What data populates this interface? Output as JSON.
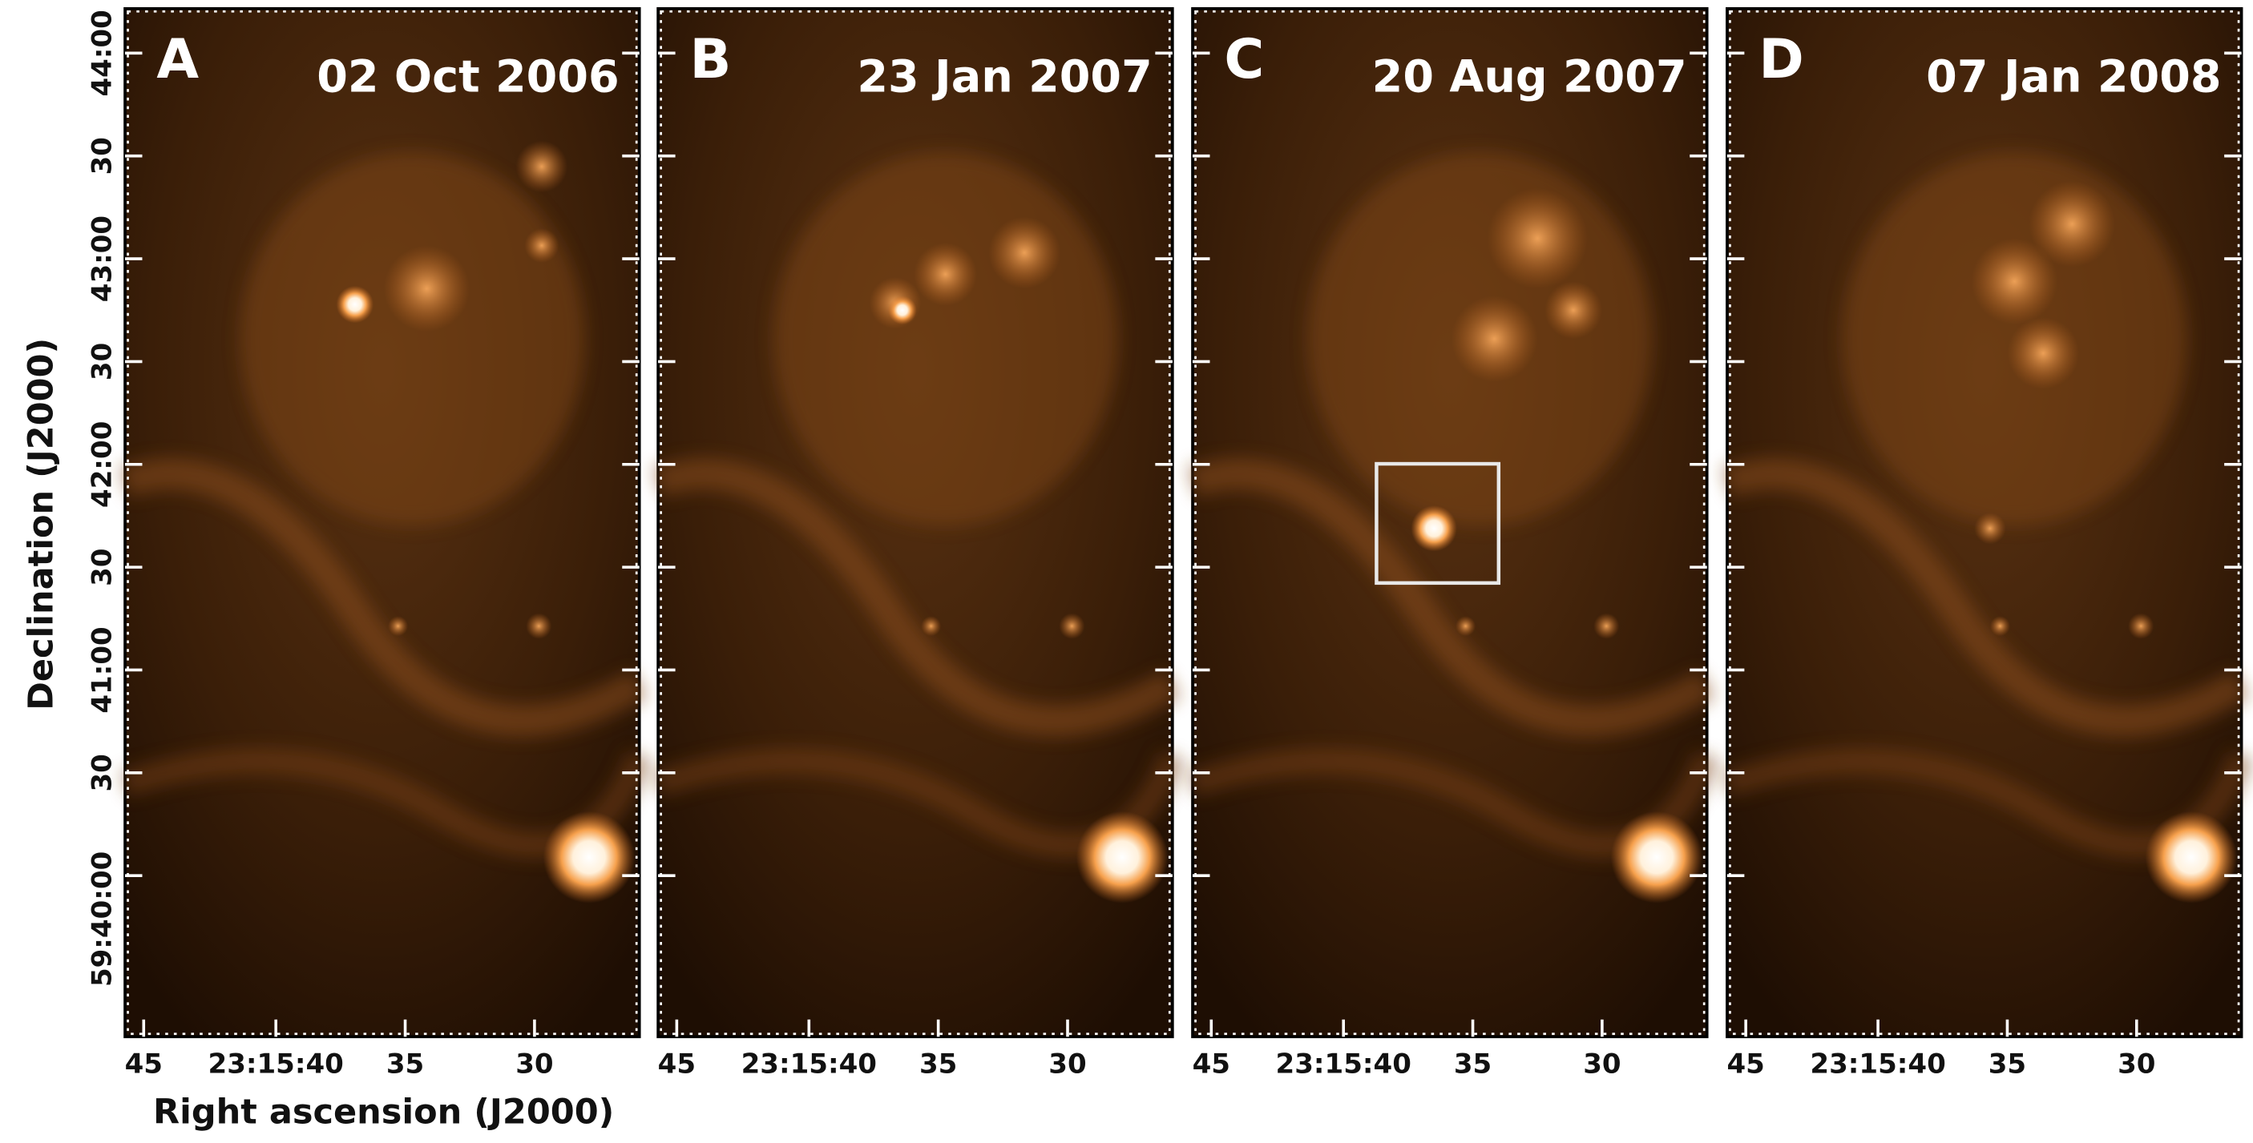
{
  "panels": [
    {
      "letter": "A",
      "date": "02 Oct 2006"
    },
    {
      "letter": "B",
      "date": "23 Jan 2007"
    },
    {
      "letter": "C",
      "date": "20 Aug 2007"
    },
    {
      "letter": "D",
      "date": "07 Jan 2008"
    }
  ],
  "y_axis": {
    "label": "Declination (J2000)",
    "ticks": [
      "44:00",
      "30",
      "43:00",
      "30",
      "42:00",
      "30",
      "41:00",
      "30",
      "59:40:00"
    ]
  },
  "x_axis": {
    "label": "Right ascension (J2000)",
    "ticks": [
      "45",
      "23:15:40",
      "35",
      "30"
    ]
  }
}
